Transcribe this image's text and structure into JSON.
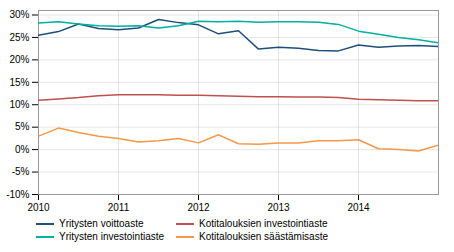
{
  "chart_data": {
    "type": "line",
    "categories": [
      "2010",
      null,
      null,
      null,
      "2011",
      null,
      null,
      null,
      "2012",
      null,
      null,
      null,
      "2013",
      null,
      null,
      null,
      "2014",
      null,
      null,
      null,
      null
    ],
    "series": [
      {
        "name": "Yritysten voittoaste",
        "color": "#1f4e79",
        "values": [
          0.255,
          0.263,
          0.28,
          0.27,
          0.267,
          0.271,
          0.29,
          0.283,
          0.278,
          0.258,
          0.265,
          0.224,
          0.228,
          0.226,
          0.221,
          0.22,
          0.233,
          0.228,
          0.231,
          0.232,
          0.23
        ]
      },
      {
        "name": "Kotitalouksien investointiaste",
        "color": "#c0504d",
        "values": [
          0.11,
          0.113,
          0.116,
          0.12,
          0.122,
          0.122,
          0.122,
          0.121,
          0.121,
          0.12,
          0.119,
          0.118,
          0.118,
          0.117,
          0.117,
          0.116,
          0.112,
          0.111,
          0.11,
          0.109,
          0.109
        ]
      },
      {
        "name": "Yritysten investointiaste",
        "color": "#00b0a0",
        "values": [
          0.282,
          0.285,
          0.28,
          0.276,
          0.275,
          0.276,
          0.271,
          0.276,
          0.286,
          0.285,
          0.286,
          0.284,
          0.285,
          0.285,
          0.284,
          0.279,
          0.264,
          0.257,
          0.25,
          0.245,
          0.238
        ]
      },
      {
        "name": "Kotitalouksien säästämisaste",
        "color": "#f79646",
        "values": [
          0.03,
          0.048,
          0.038,
          0.03,
          0.025,
          0.017,
          0.02,
          0.025,
          0.015,
          0.033,
          0.013,
          0.012,
          0.015,
          0.015,
          0.02,
          0.02,
          0.022,
          0.002,
          0.0,
          -0.003,
          0.01
        ]
      }
    ],
    "ylim": [
      -0.1,
      0.31
    ],
    "yticks": [
      {
        "value": -0.1,
        "label": "-10%"
      },
      {
        "value": -0.05,
        "label": "-5%"
      },
      {
        "value": 0.0,
        "label": "0%"
      },
      {
        "value": 0.05,
        "label": "5%"
      },
      {
        "value": 0.1,
        "label": "10%"
      },
      {
        "value": 0.15,
        "label": "15%"
      },
      {
        "value": 0.2,
        "label": "20%"
      },
      {
        "value": 0.25,
        "label": "25%"
      },
      {
        "value": 0.3,
        "label": "30%"
      }
    ],
    "grid": true,
    "legend": "lower left"
  }
}
